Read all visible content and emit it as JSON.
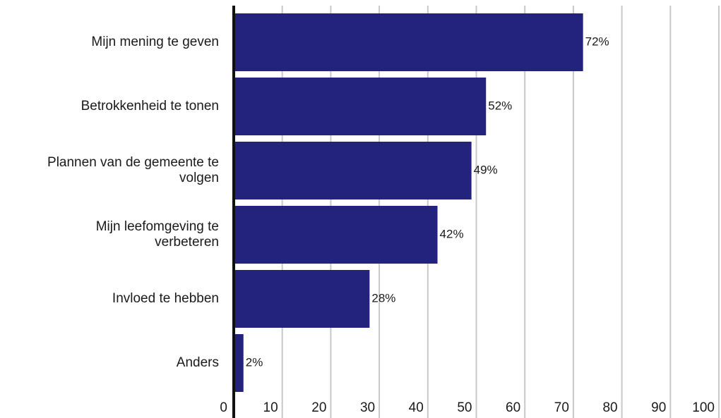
{
  "chart_data": {
    "type": "bar",
    "orientation": "horizontal",
    "categories": [
      "Mijn mening te geven",
      "Betrokkenheid te tonen",
      "Plannen van de gemeente te volgen",
      "Mijn leefomgeving te verbeteren",
      "Invloed te hebben",
      "Anders"
    ],
    "category_lines": [
      [
        "Mijn mening te geven"
      ],
      [
        "Betrokkenheid te tonen"
      ],
      [
        "Plannen van de gemeente te",
        "volgen"
      ],
      [
        "Mijn leefomgeving te",
        "verbeteren"
      ],
      [
        "Invloed te hebben"
      ],
      [
        "Anders"
      ]
    ],
    "values": [
      72,
      52,
      49,
      42,
      28,
      2
    ],
    "value_labels": [
      "72%",
      "52%",
      "49%",
      "42%",
      "28%",
      "2%"
    ],
    "xlim": [
      0,
      100
    ],
    "xticks": [
      "0",
      "10",
      "20",
      "30",
      "40",
      "50",
      "60",
      "70",
      "80",
      "90",
      "100"
    ],
    "grid": "vertical",
    "colors": {
      "bar": "#23237e",
      "grid": "#c8c8c8",
      "axis": "#111111"
    }
  }
}
